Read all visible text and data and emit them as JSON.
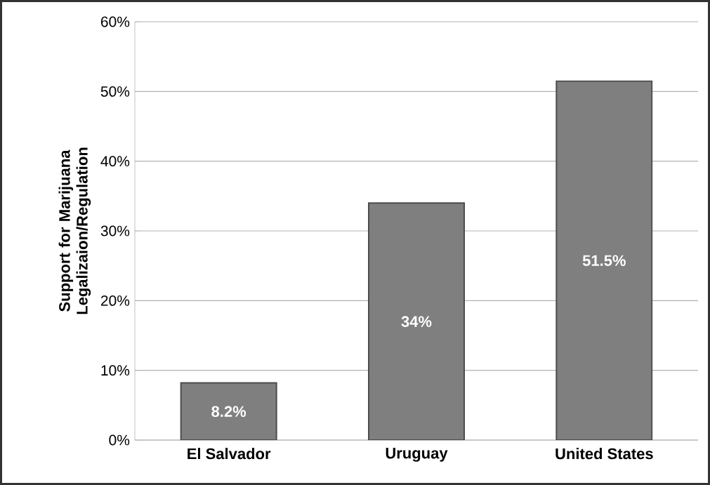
{
  "chart_data": {
    "type": "bar",
    "ylabel": "Support for Marijuana Legalizaion/Regulation",
    "categories": [
      "El Salvador",
      "Uruguay",
      "United States"
    ],
    "values": [
      8.2,
      34,
      51.5
    ],
    "value_labels": [
      "8.2%",
      "34%",
      "51.5%"
    ],
    "color": "#7f7f7f",
    "ylim": [
      0,
      60
    ],
    "yticks": [
      {
        "value": 0,
        "label": "0%"
      },
      {
        "value": 10,
        "label": "10%"
      },
      {
        "value": 20,
        "label": "20%"
      },
      {
        "value": 30,
        "label": "30%"
      },
      {
        "value": 40,
        "label": "40%"
      },
      {
        "value": 50,
        "label": "50%"
      },
      {
        "value": 60,
        "label": "60%"
      }
    ],
    "grid": "y"
  }
}
